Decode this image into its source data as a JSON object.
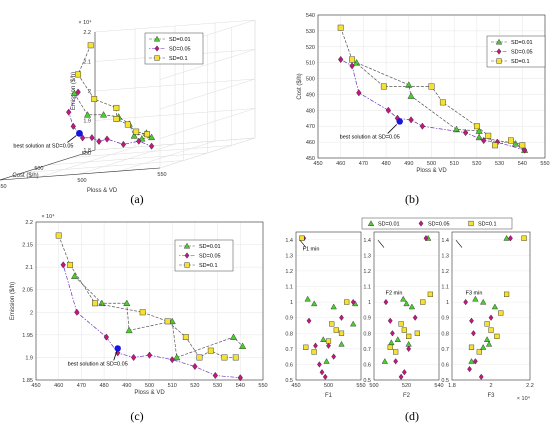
{
  "colors": {
    "sd001": "#4ccc2e",
    "sd005": "#c3167f",
    "sd01": "#f4e132",
    "best": "#1515e0"
  },
  "chart_data": [
    {
      "panel": "(a)",
      "type": "scatter",
      "projection": "3d",
      "xlabel": "Ploss & VD",
      "ylabel": "Cost ($/h)",
      "zlabel": "Emission ($/h)",
      "zexp": "× 10⁴",
      "xticks": [
        "450",
        "500",
        "550"
      ],
      "yticks": [
        "450",
        "500",
        "550"
      ],
      "zticks": [
        "1.8",
        "1.9",
        "2",
        "2.1",
        "2.2"
      ],
      "xlim": [
        450,
        550
      ],
      "ylim": [
        450,
        550
      ],
      "zlim": [
        1.8,
        2.2
      ],
      "annotation": "best solution at SD=0.05",
      "series": [
        {
          "name": "SD=0.01",
          "marker": "triangle",
          "color": "#4ccc2e",
          "points": [
            [
              462,
              508,
              2.03
            ],
            [
              475,
              500,
              1.96
            ],
            [
              488,
              495,
              1.96
            ],
            [
              498,
              494,
              1.95
            ],
            [
              510,
              485,
              1.93
            ],
            [
              522,
              470,
              1.9
            ],
            [
              532,
              466,
              1.91
            ],
            [
              540,
              458,
              1.9
            ],
            [
              528,
              468,
              1.89
            ]
          ]
        },
        {
          "name": "SD=0.05",
          "marker": "diamond",
          "color": "#c3167f",
          "points": [
            [
              462,
              512,
              2.03
            ],
            [
              468,
              492,
              1.98
            ],
            [
              478,
              480,
              1.94
            ],
            [
              485,
              478,
              1.9
            ],
            [
              492,
              476,
              1.9
            ],
            [
              500,
              470,
              1.89
            ],
            [
              508,
              465,
              1.9
            ],
            [
              520,
              462,
              1.88
            ],
            [
              532,
              458,
              1.89
            ],
            [
              540,
              458,
              1.87
            ]
          ]
        },
        {
          "name": "SD=0.1",
          "marker": "square",
          "color": "#f4e132",
          "points": [
            [
              458,
              532,
              2.17
            ],
            [
              462,
              512,
              2.09
            ],
            [
              478,
              502,
              2.01
            ],
            [
              496,
              495,
              1.98
            ],
            [
              502,
              485,
              1.95
            ],
            [
              518,
              470,
              1.94
            ],
            [
              528,
              462,
              1.92
            ],
            [
              536,
              460,
              1.91
            ]
          ]
        }
      ],
      "best": [
        486,
        473,
        1.92
      ]
    },
    {
      "panel": "(b)",
      "type": "scatter",
      "xlabel": "Ploss & VD",
      "ylabel": "Cost ($/h)",
      "xlim": [
        450,
        550
      ],
      "ylim": [
        450,
        540
      ],
      "xticks": [
        450,
        460,
        470,
        480,
        490,
        500,
        510,
        520,
        530,
        540,
        550
      ],
      "yticks": [
        450,
        460,
        470,
        480,
        490,
        500,
        510,
        520,
        530,
        540
      ],
      "annotation": "best solution at SD=0.05",
      "series": [
        {
          "name": "SD=0.01",
          "marker": "triangle",
          "color": "#4ccc2e",
          "points": [
            [
              467,
              510
            ],
            [
              490,
              496
            ],
            [
              491,
              489
            ],
            [
              511,
              468
            ],
            [
              521,
              467
            ],
            [
              521,
              463
            ],
            [
              537,
              459
            ],
            [
              541,
              455
            ]
          ]
        },
        {
          "name": "SD=0.05",
          "marker": "diamond",
          "color": "#c3167f",
          "points": [
            [
              460,
              512
            ],
            [
              465,
              508
            ],
            [
              468,
              491
            ],
            [
              481,
              480
            ],
            [
              485,
              475
            ],
            [
              491,
              474
            ],
            [
              496,
              470
            ],
            [
              515,
              466
            ],
            [
              523,
              461
            ],
            [
              529,
              460
            ],
            [
              541,
              455
            ]
          ]
        },
        {
          "name": "SD=0.1",
          "marker": "square",
          "color": "#f4e132",
          "points": [
            [
              460,
              532
            ],
            [
              465,
              512
            ],
            [
              479,
              495
            ],
            [
              500,
              495
            ],
            [
              505,
              485
            ],
            [
              520,
              470
            ],
            [
              525,
              464
            ],
            [
              528,
              458
            ],
            [
              535,
              461
            ],
            [
              540,
              458
            ]
          ]
        }
      ],
      "best": [
        486,
        473
      ]
    },
    {
      "panel": "(c)",
      "type": "scatter",
      "xlabel": "Ploss & VD",
      "ylabel": "Emission ($/h)",
      "yexp": "× 10⁴",
      "xlim": [
        450,
        550
      ],
      "ylim": [
        1.85,
        2.2
      ],
      "xticks": [
        450,
        460,
        470,
        480,
        490,
        500,
        510,
        520,
        530,
        540,
        550
      ],
      "yticks": [
        "1.85",
        "1.9",
        "1.95",
        "2",
        "2.05",
        "2.1",
        "2.15",
        "2.2"
      ],
      "annotation": "best solution at SD=0.05",
      "series": [
        {
          "name": "SD=0.01",
          "marker": "triangle",
          "color": "#4ccc2e",
          "points": [
            [
              467,
              2.08
            ],
            [
              479,
              2.02
            ],
            [
              490,
              2.02
            ],
            [
              491,
              1.96
            ],
            [
              510,
              1.98
            ],
            [
              512,
              1.9
            ],
            [
              537,
              1.945
            ],
            [
              541,
              1.925
            ]
          ]
        },
        {
          "name": "SD=0.05",
          "marker": "diamond",
          "color": "#c3167f",
          "points": [
            [
              462,
              2.105
            ],
            [
              468,
              2.0
            ],
            [
              481,
              1.945
            ],
            [
              486,
              1.91
            ],
            [
              493,
              1.9
            ],
            [
              500,
              1.905
            ],
            [
              510,
              1.895
            ],
            [
              520,
              1.88
            ],
            [
              529,
              1.86
            ],
            [
              540,
              1.855
            ]
          ]
        },
        {
          "name": "SD=0.1",
          "marker": "square",
          "color": "#f4e132",
          "points": [
            [
              460,
              2.17
            ],
            [
              465,
              2.105
            ],
            [
              476,
              2.02
            ],
            [
              497,
              2.0
            ],
            [
              508,
              1.98
            ],
            [
              516,
              1.945
            ],
            [
              522,
              1.9
            ],
            [
              527,
              1.915
            ],
            [
              533,
              1.9
            ],
            [
              538,
              1.9
            ]
          ]
        }
      ],
      "best": [
        486,
        1.92
      ]
    },
    {
      "panel": "(d)",
      "type": "scatter",
      "subplots": 3,
      "legend": [
        "SD=0.01",
        "SD=0.05",
        "SD=0.1"
      ],
      "subplot_labels": [
        "F1",
        "F2",
        "F3"
      ],
      "annotations": [
        "F1 min",
        "F2 min",
        "F3 min"
      ],
      "yticks": [
        "0.5",
        "0.6",
        "0.7",
        "0.8",
        "0.9",
        "1",
        "1.1",
        "1.2",
        "1.3",
        "1.4"
      ],
      "ylim": [
        0.5,
        1.45
      ],
      "xticks": [
        [
          "450",
          "500",
          "550"
        ],
        [
          "500",
          "520",
          "540"
        ],
        [
          "1.8",
          "2",
          "2.2"
        ]
      ],
      "xexp": "× 10⁴",
      "subplots_data": [
        {
          "xlim": [
            450,
            550
          ],
          "series": [
            {
              "name": "SD=0.01",
              "points": [
                [
                  468,
                  1.02
                ],
                [
                  478,
                  0.99
                ],
                [
                  492,
                  0.76
                ],
                [
                  497,
                  0.62
                ],
                [
                  508,
                  0.97
                ],
                [
                  520,
                  0.73
                ],
                [
                  538,
                  0.86
                ],
                [
                  541,
                  0.99
                ]
              ]
            },
            {
              "name": "SD=0.05",
              "points": [
                [
                  462,
                  1.41
                ],
                [
                  470,
                  0.88
                ],
                [
                  480,
                  0.72
                ],
                [
                  486,
                  0.6
                ],
                [
                  490,
                  0.55
                ],
                [
                  495,
                  0.52
                ],
                [
                  500,
                  0.72
                ],
                [
                  508,
                  0.65
                ],
                [
                  520,
                  0.9
                ],
                [
                  538,
                  1.0
                ]
              ]
            },
            {
              "name": "SD=0.1",
              "points": [
                [
                  459,
                  1.41
                ],
                [
                  465,
                  0.71
                ],
                [
                  478,
                  0.68
                ],
                [
                  500,
                  0.75
                ],
                [
                  505,
                  0.86
                ],
                [
                  512,
                  0.82
                ],
                [
                  520,
                  0.8
                ],
                [
                  528,
                  1.0
                ]
              ]
            }
          ]
        },
        {
          "xlim": [
            480,
            540
          ],
          "series": [
            {
              "name": "SD=0.01",
              "points": [
                [
                  507,
                  1.02
                ],
                [
                  510,
                  0.99
                ],
                [
                  502,
                  0.76
                ],
                [
                  496,
                  0.74
                ],
                [
                  490,
                  0.62
                ],
                [
                  515,
                  0.97
                ],
                [
                  512,
                  0.73
                ],
                [
                  530,
                  1.41
                ]
              ]
            },
            {
              "name": "SD=0.05",
              "points": [
                [
                  491,
                  1.0
                ],
                [
                  495,
                  0.88
                ],
                [
                  497,
                  0.8
                ],
                [
                  500,
                  0.62
                ],
                [
                  505,
                  0.52
                ],
                [
                  508,
                  0.55
                ],
                [
                  512,
                  0.7
                ],
                [
                  518,
                  0.9
                ],
                [
                  528,
                  1.41
                ]
              ]
            },
            {
              "name": "SD=0.1",
              "points": [
                [
                  495,
                  0.71
                ],
                [
                  500,
                  0.68
                ],
                [
                  505,
                  0.86
                ],
                [
                  508,
                  0.82
                ],
                [
                  512,
                  0.78
                ],
                [
                  520,
                  0.8
                ],
                [
                  525,
                  1.0
                ],
                [
                  532,
                  1.05
                ]
              ]
            }
          ]
        },
        {
          "xlim": [
            1.8,
            2.2
          ],
          "series": [
            {
              "name": "SD=0.01",
              "points": [
                [
                  1.92,
                  1.02
                ],
                [
                  1.96,
                  1.0
                ],
                [
                  1.98,
                  0.76
                ],
                [
                  1.9,
                  0.62
                ],
                [
                  2.02,
                  0.97
                ],
                [
                  1.99,
                  0.73
                ],
                [
                  1.96,
                  0.71
                ],
                [
                  2.08,
                  1.41
                ]
              ]
            },
            {
              "name": "SD=0.05",
              "points": [
                [
                  1.87,
                  1.0
                ],
                [
                  1.9,
                  0.88
                ],
                [
                  1.91,
                  0.8
                ],
                [
                  1.92,
                  0.62
                ],
                [
                  1.89,
                  0.57
                ],
                [
                  1.95,
                  0.52
                ],
                [
                  2.0,
                  0.9
                ],
                [
                  2.1,
                  1.41
                ]
              ]
            },
            {
              "name": "SD=0.1",
              "points": [
                [
                  1.9,
                  0.71
                ],
                [
                  1.94,
                  0.68
                ],
                [
                  1.98,
                  0.86
                ],
                [
                  2.0,
                  0.82
                ],
                [
                  2.03,
                  0.78
                ],
                [
                  2.05,
                  0.93
                ],
                [
                  2.08,
                  1.05
                ],
                [
                  2.17,
                  1.41
                ]
              ]
            }
          ]
        }
      ]
    }
  ]
}
